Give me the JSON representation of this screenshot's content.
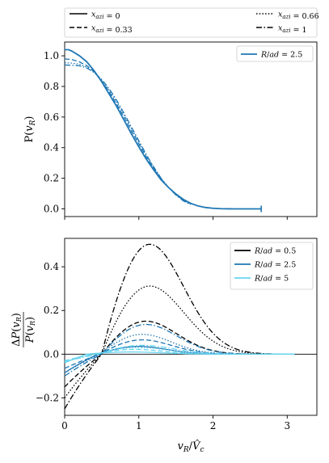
{
  "chart_data": [
    {
      "type": "line",
      "panel": "top",
      "ylabel": "P(v_R)",
      "xlim": [
        0,
        3.4
      ],
      "ylim": [
        -0.05,
        1.09
      ],
      "xticks": [
        0,
        1,
        2,
        3
      ],
      "yticks": [
        0.0,
        0.2,
        0.4,
        0.6,
        0.8,
        1.0
      ],
      "ytick_labels": [
        "0.0",
        "0.2",
        "0.4",
        "0.6",
        "0.8",
        "1.0"
      ],
      "style_legend": {
        "placement": "above plots",
        "entries": [
          {
            "label": "x_azi = 0",
            "dash": "solid"
          },
          {
            "label": "x_azi = 0.33",
            "dash": "dashed"
          },
          {
            "label": "x_azi = 0.66",
            "dash": "dotted"
          },
          {
            "label": "x_azi = 1",
            "dash": "dashdot"
          }
        ]
      },
      "legend": {
        "placement": "top-right",
        "entries": [
          {
            "label": "R/a_d = 2.5",
            "color": "#1f77b4"
          }
        ]
      },
      "color": "#1f77b4",
      "series": [
        {
          "dash": "solid",
          "x": [
            0,
            0.05,
            0.1,
            0.2,
            0.3,
            0.4,
            0.5,
            0.6,
            0.7,
            0.8,
            0.9,
            1.0,
            1.1,
            1.2,
            1.3,
            1.4,
            1.5,
            1.6,
            1.7,
            1.8,
            1.9,
            2.0,
            2.1,
            2.2,
            2.3,
            2.4,
            2.5,
            2.65
          ],
          "y": [
            1.04,
            1.04,
            1.03,
            1.0,
            0.96,
            0.9,
            0.83,
            0.75,
            0.67,
            0.58,
            0.49,
            0.405,
            0.325,
            0.255,
            0.19,
            0.14,
            0.097,
            0.062,
            0.036,
            0.019,
            0.009,
            0.004,
            0.0015,
            0.0005,
            0.0001,
            0,
            0,
            0
          ]
        },
        {
          "dash": "dashed",
          "x": [
            0,
            0.1,
            0.2,
            0.3,
            0.4,
            0.5,
            0.6,
            0.7,
            0.8,
            0.9,
            1.0,
            1.1,
            1.2,
            1.3,
            1.4,
            1.5,
            1.6,
            1.7
          ],
          "y": [
            0.98,
            0.975,
            0.96,
            0.935,
            0.895,
            0.835,
            0.765,
            0.685,
            0.6,
            0.51,
            0.425,
            0.34,
            0.265,
            0.195,
            0.14,
            0.093,
            0.057,
            0.033
          ]
        },
        {
          "dash": "dotted",
          "x": [
            0,
            0.1,
            0.2,
            0.3,
            0.4,
            0.5,
            0.6,
            0.7,
            0.8,
            0.9,
            1.0,
            1.1,
            1.2,
            1.3,
            1.4,
            1.5,
            1.6,
            1.7
          ],
          "y": [
            0.955,
            0.952,
            0.945,
            0.925,
            0.89,
            0.84,
            0.775,
            0.7,
            0.615,
            0.525,
            0.435,
            0.35,
            0.27,
            0.2,
            0.14,
            0.092,
            0.055,
            0.03
          ]
        },
        {
          "dash": "dashdot",
          "x": [
            0,
            0.1,
            0.2,
            0.3,
            0.4,
            0.5,
            0.6,
            0.7,
            0.8,
            0.9,
            1.0,
            1.1,
            1.2,
            1.3,
            1.4,
            1.5,
            1.6,
            1.7
          ],
          "y": [
            0.94,
            0.938,
            0.935,
            0.92,
            0.89,
            0.845,
            0.785,
            0.71,
            0.625,
            0.535,
            0.445,
            0.355,
            0.275,
            0.2,
            0.14,
            0.09,
            0.052,
            0.028
          ]
        }
      ],
      "end_marker": {
        "x": 2.65,
        "y": 0
      }
    },
    {
      "type": "line",
      "panel": "bottom",
      "ylabel": "ΔP(v_R) / P(v_R)",
      "xlabel": "v_R / V̂_c",
      "xlim": [
        0,
        3.4
      ],
      "ylim": [
        -0.28,
        0.53
      ],
      "xticks": [
        0,
        1,
        2,
        3
      ],
      "yticks": [
        -0.2,
        0.0,
        0.2,
        0.4
      ],
      "ytick_labels": [
        "−0.2",
        "0.0",
        "0.2",
        "0.4"
      ],
      "xtick_labels": [
        "0",
        "1",
        "2",
        "3"
      ],
      "zero_line": true,
      "legend": {
        "placement": "top-right",
        "entries": [
          {
            "label": "R/a_d = 0.5",
            "color": "#000000"
          },
          {
            "label": "R/a_d = 2.5",
            "color": "#1f77b4"
          },
          {
            "label": "R/a_d = 5",
            "color": "#67d4f0"
          }
        ]
      },
      "groups": [
        {
          "color": "#000000",
          "series": [
            {
              "dash": "dashed",
              "amp_neg": -0.15,
              "amp_pos": 0.15,
              "cross": 0.5,
              "peak": 1.05
            },
            {
              "dash": "dotted",
              "amp_neg": -0.2,
              "amp_pos": 0.31,
              "cross": 0.5,
              "peak": 1.1
            },
            {
              "dash": "dashdot",
              "amp_neg": -0.25,
              "amp_pos": 0.5,
              "cross": 0.5,
              "peak": 1.1
            }
          ]
        },
        {
          "color": "#1f77b4",
          "series": [
            {
              "dash": "solid",
              "amp_neg": -0.085,
              "amp_pos": 0.035,
              "cross": 0.45,
              "peak": 0.95
            },
            {
              "dash": "dashed",
              "amp_neg": -0.065,
              "amp_pos": 0.065,
              "cross": 0.48,
              "peak": 1.0
            },
            {
              "dash": "dotted",
              "amp_neg": -0.085,
              "amp_pos": 0.09,
              "cross": 0.48,
              "peak": 1.0
            },
            {
              "dash": "dashdot",
              "amp_neg": -0.1,
              "amp_pos": 0.135,
              "cross": 0.5,
              "peak": 1.05
            }
          ]
        },
        {
          "color": "#67d4f0",
          "series": [
            {
              "dash": "solid",
              "amp_neg": -0.04,
              "amp_pos": 0.01,
              "cross": 0.3,
              "peak": 0.85
            },
            {
              "dash": "dashed",
              "amp_neg": -0.03,
              "amp_pos": 0.022,
              "cross": 0.4,
              "peak": 0.9
            },
            {
              "dash": "dotted",
              "amp_neg": -0.035,
              "amp_pos": 0.03,
              "cross": 0.42,
              "peak": 0.95
            },
            {
              "dash": "dashdot",
              "amp_neg": -0.035,
              "amp_pos": 0.04,
              "cross": 0.45,
              "peak": 1.0
            }
          ]
        }
      ],
      "x_end": 3.1
    }
  ]
}
